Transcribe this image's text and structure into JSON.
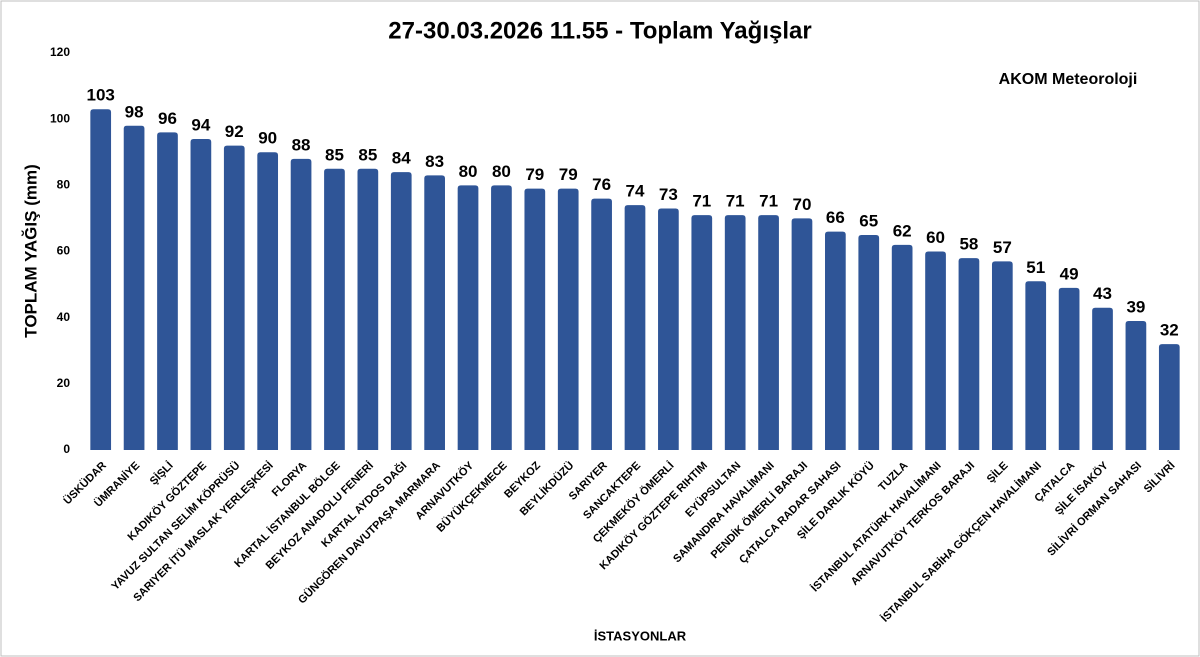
{
  "chart_data": {
    "type": "bar",
    "title": "27-30.03.2026 11.55 - Toplam Yağışlar",
    "annotation": "AKOM Meteoroloji",
    "y_label": "TOPLAM YAĞIŞ (mm)",
    "x_label": "İSTASYONLAR",
    "categories": [
      "ÜSKÜDAR",
      "ÜMRANİYE",
      "ŞİŞLİ",
      "KADIKÖY GÖZTEPE",
      "YAVUZ SULTAN SELİM KÖPRÜSÜ",
      "SARIYER İTÜ MASLAK YERLEŞKESİ",
      "FLORYA",
      "KARTAL İSTANBUL BÖLGE",
      "BEYKOZ ANADOLU FENERİ",
      "KARTAL AYDOS DAĞI",
      "GÜNGÖREN DAVUTPAŞA MARMARA",
      "ARNAVUTKÖY",
      "BÜYÜKÇEKMECE",
      "BEYKOZ",
      "BEYLİKDÜZÜ",
      "SARIYER",
      "SANCAKTEPE",
      "ÇEKMEKÖY ÖMERLİ",
      "KADIKÖY GÖZTEPE RIHTIM",
      "EYÜPSULTAN",
      "SAMANDIRA HAVALİMANI",
      "PENDİK ÖMERLİ BARAJI",
      "ÇATALCA RADAR SAHASI",
      "ŞİLE DARLIK KÖYÜ",
      "TUZLA",
      "İSTANBUL ATATÜRK HAVALİMANI",
      "ARNAVUTKÖY TERKOS BARAJI",
      "ŞİLE",
      "İSTANBUL SABİHA GÖKÇEN HAVALİMANI",
      "ÇATALCA",
      "ŞİLE İSAKÖY",
      "SİLİVRİ ORMAN SAHASI",
      "SİLİVRİ"
    ],
    "values": [
      103,
      98,
      96,
      94,
      92,
      90,
      88,
      85,
      85,
      84,
      83,
      80,
      80,
      79,
      79,
      76,
      74,
      73,
      71,
      71,
      71,
      70,
      66,
      65,
      62,
      60,
      58,
      57,
      51,
      49,
      43,
      39,
      32
    ],
    "color": "#2f5597",
    "ylim": [
      0,
      120
    ],
    "yticks": [
      0,
      20,
      40,
      60,
      80,
      100,
      120
    ],
    "grid": false
  }
}
